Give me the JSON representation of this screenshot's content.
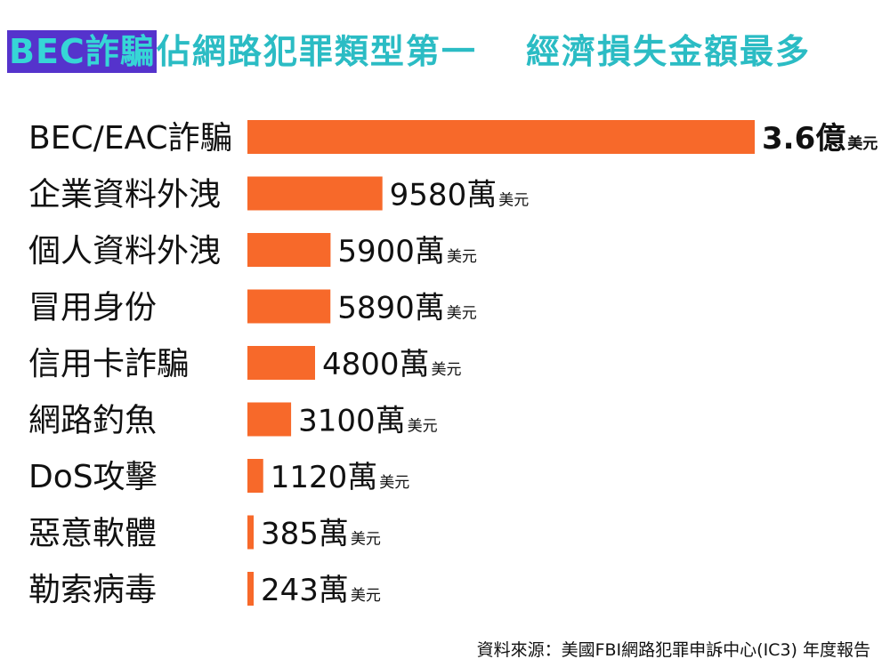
{
  "chart_data": {
    "type": "bar",
    "orientation": "horizontal",
    "title_highlight": "BEC詐騙",
    "title_rest": "佔網路犯罪類型第一　 經濟損失金額最多",
    "categories": [
      "BEC/EAC詐騙",
      "企業資料外洩",
      "個人資料外洩",
      "冒用身份",
      "信用卡詐騙",
      "網路釣魚",
      "DoS攻擊",
      "惡意軟體",
      "勒索病毒"
    ],
    "values_usd_10k": [
      36000,
      9580,
      5900,
      5890,
      4800,
      3100,
      1120,
      385,
      243
    ],
    "value_labels": [
      {
        "amount": "3.6億",
        "unit": "美元"
      },
      {
        "amount": "9580萬",
        "unit": "美元"
      },
      {
        "amount": "5900萬",
        "unit": "美元"
      },
      {
        "amount": "5890萬",
        "unit": "美元"
      },
      {
        "amount": "4800萬",
        "unit": "美元"
      },
      {
        "amount": "3100萬",
        "unit": "美元"
      },
      {
        "amount": "1120萬",
        "unit": "美元"
      },
      {
        "amount": "385萬",
        "unit": "美元"
      },
      {
        "amount": "243萬",
        "unit": "美元"
      }
    ],
    "bar_color": "#f7692a",
    "grid": false,
    "legend": false
  },
  "footer": {
    "source": "資料來源：美國FBI網路犯罪申訴中心(IC3) 年度報告"
  }
}
